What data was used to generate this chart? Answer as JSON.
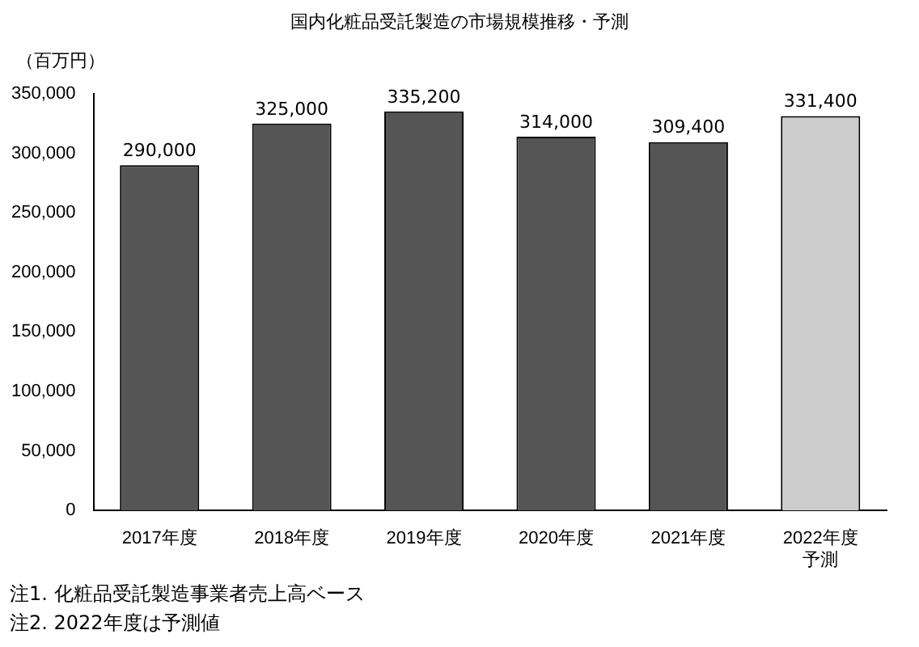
{
  "chart_data": {
    "type": "bar",
    "title": "国内化粧品受託製造の市場規模推移・予測",
    "ylabel": "（百万円）",
    "categories": [
      "2017年度",
      "2018年度",
      "2019年度",
      "2020年度",
      "2021年度",
      "2022年度予測"
    ],
    "values": [
      290000,
      325000,
      335200,
      314000,
      309400,
      331400
    ],
    "value_labels": [
      "290,000",
      "325,000",
      "335,200",
      "314,000",
      "309,400",
      "331,400"
    ],
    "colors": [
      "#555555",
      "#555555",
      "#555555",
      "#555555",
      "#555555",
      "#cccccc"
    ],
    "ylim": [
      0,
      350000
    ],
    "yticks": [
      0,
      {
        "value": 50000,
        "label": "50,000"
      },
      {
        "value": 100000,
        "label": "100,000"
      },
      {
        "value": 150000,
        "label": "150,000"
      },
      {
        "value": 200000,
        "label": "200,000"
      },
      {
        "value": 250000,
        "label": "250,000"
      },
      {
        "value": 300000,
        "label": "300,000"
      },
      {
        "value": 350000,
        "label": "350,000"
      }
    ],
    "grid": false,
    "legend": false,
    "annotations": [
      "注1. 化粧品受託製造事業者売上高ベース",
      "注2. 2022年度は予測値"
    ]
  }
}
